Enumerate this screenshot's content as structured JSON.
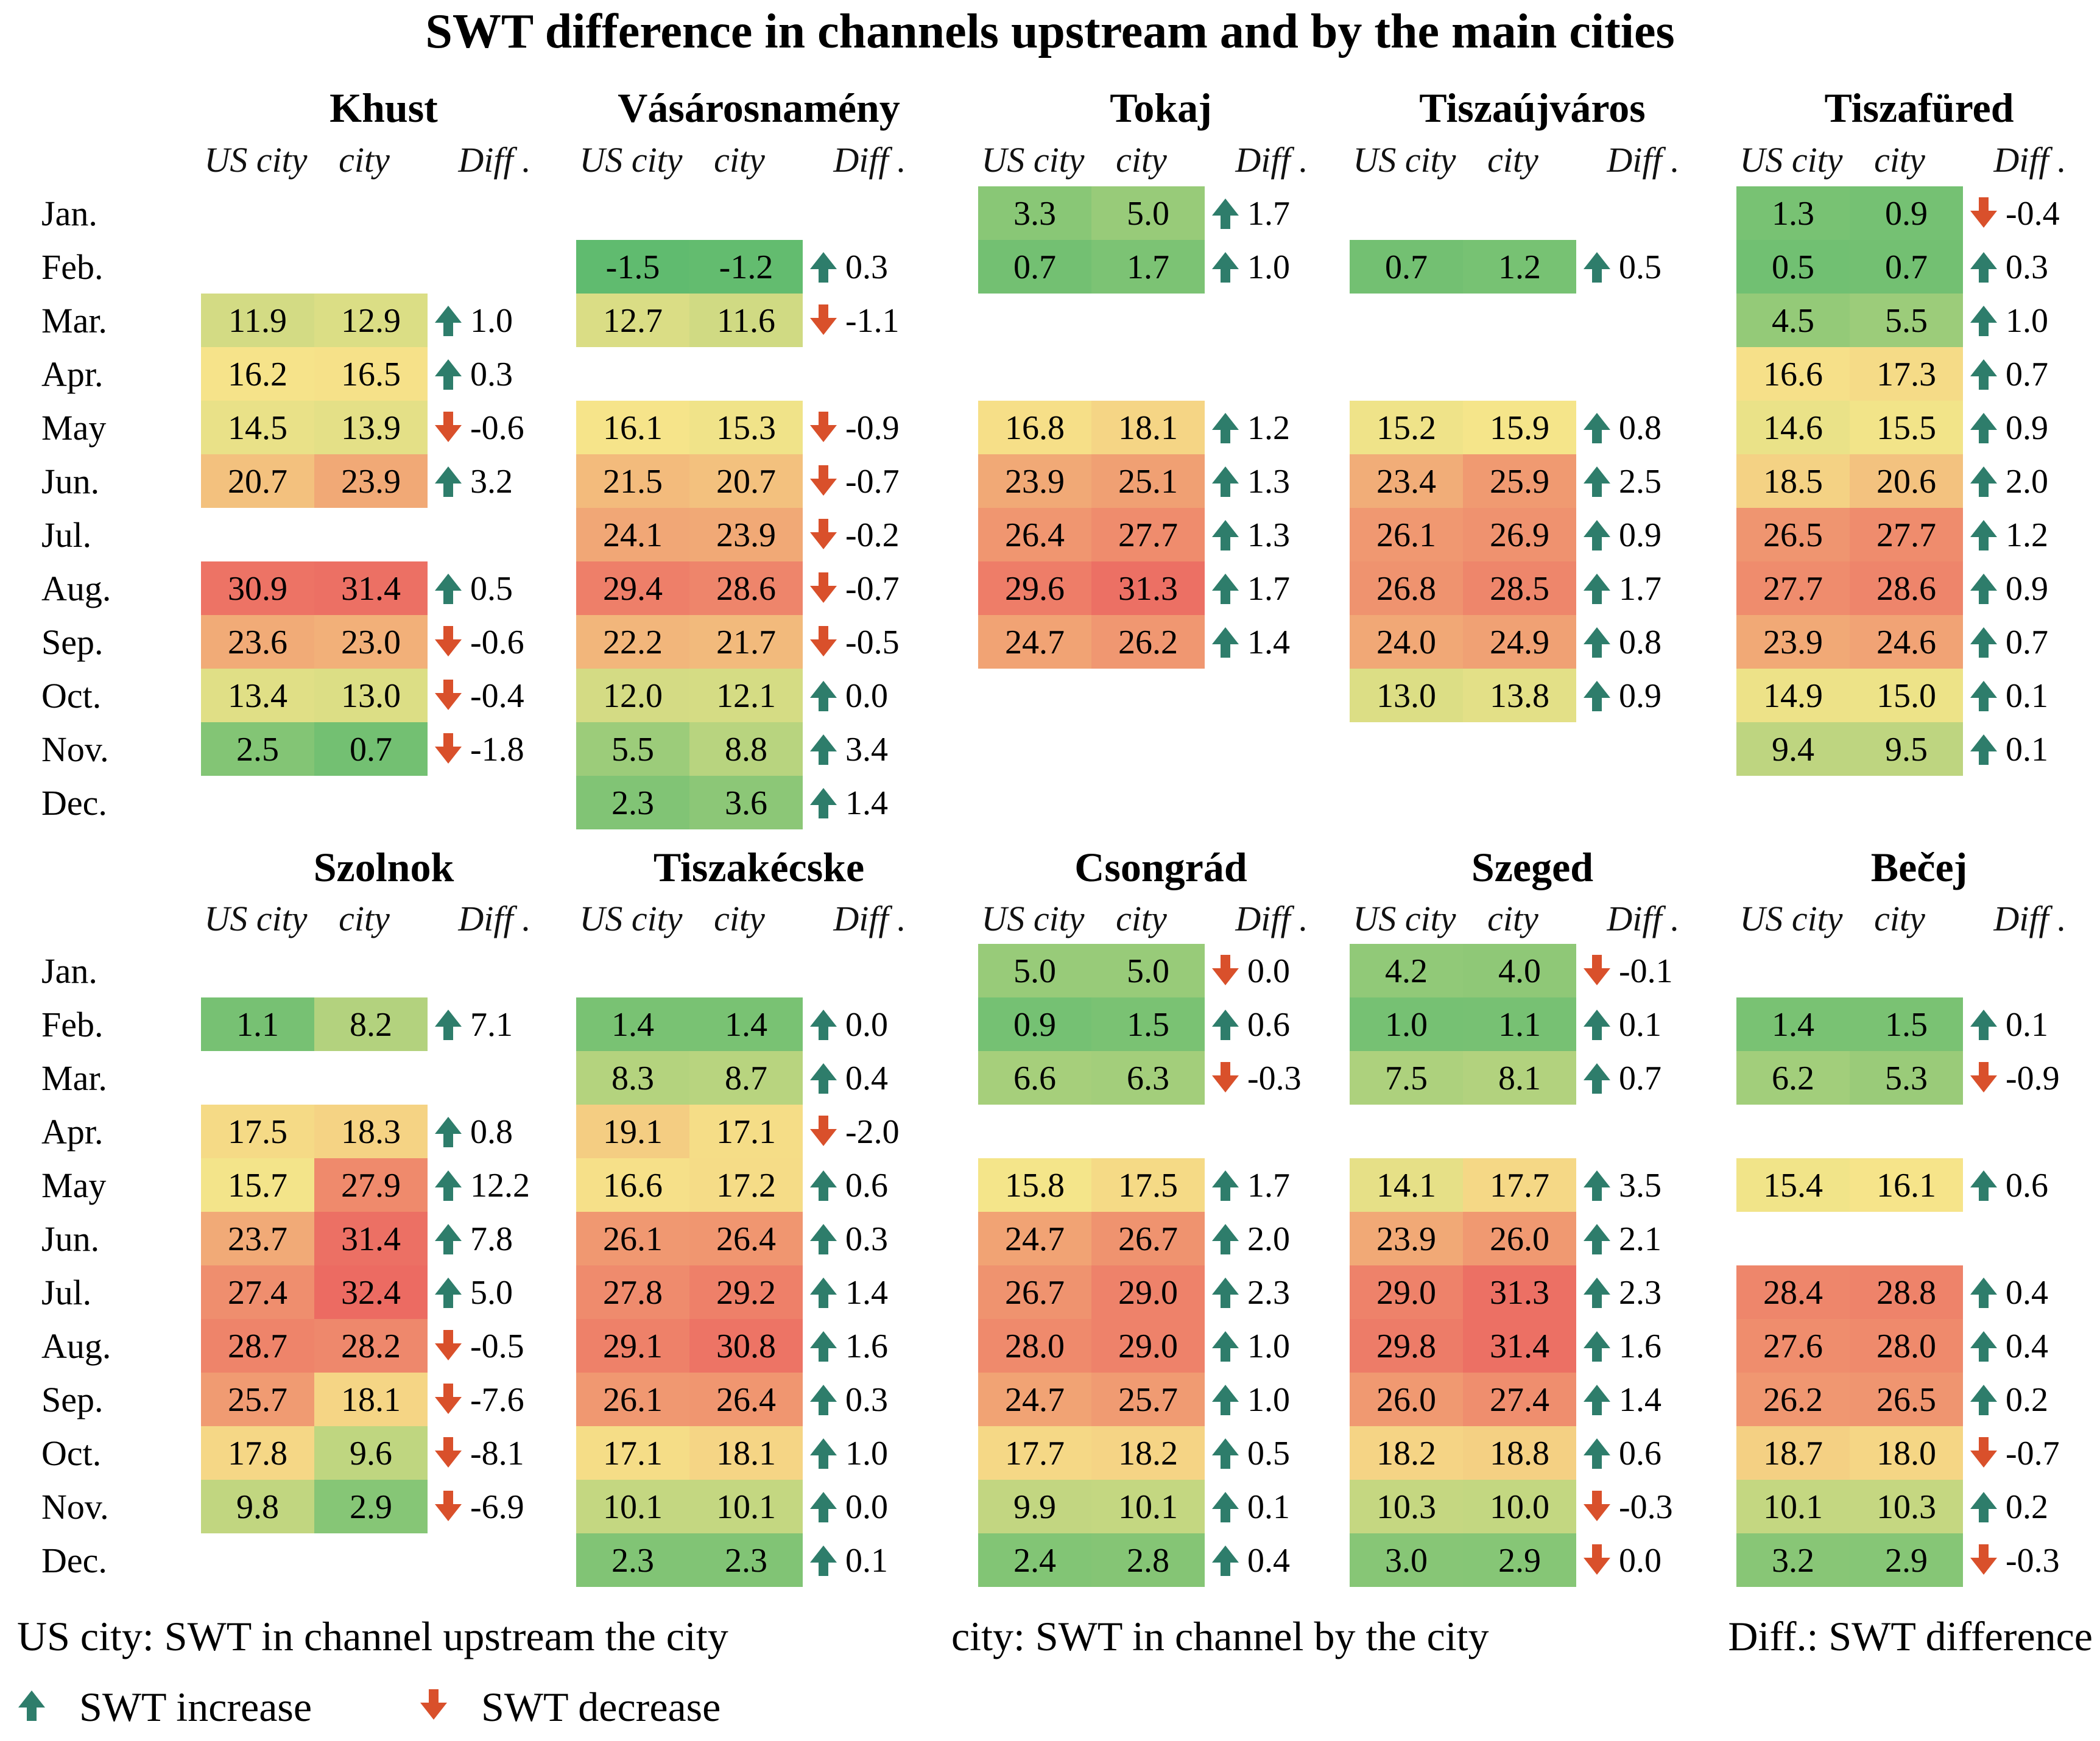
{
  "title": "SWT difference in channels upstream and by the main cities",
  "months": [
    "Jan.",
    "Feb.",
    "Mar.",
    "Apr.",
    "May",
    "Jun.",
    "Jul.",
    "Aug.",
    "Sep.",
    "Oct.",
    "Nov.",
    "Dec."
  ],
  "column_headers": {
    "us": "US city",
    "city": "city",
    "diff": "Diff ."
  },
  "footer": {
    "us_def": "US city: SWT in channel upstream the city",
    "city_def": "city: SWT in channel by the city",
    "diff_def": "Diff.: SWT difference",
    "increase": "SWT increase",
    "decrease": "SWT decrease"
  },
  "colors": {
    "increase_arrow": "#2e7d6b",
    "decrease_arrow": "#d9502b",
    "scale_low": "#5cba6e",
    "scale_mid": "#f6e58a",
    "scale_high": "#ec6b62"
  },
  "chart_data": {
    "type": "table",
    "value_scale": {
      "min": -2,
      "mid": 16,
      "max": 32
    },
    "panels": [
      {
        "city": "Khust",
        "rows": [
          null,
          null,
          {
            "us": "11.9",
            "city": "12.9",
            "diff": "1.0",
            "dir": "up"
          },
          {
            "us": "16.2",
            "city": "16.5",
            "diff": "0.3",
            "dir": "up"
          },
          {
            "us": "14.5",
            "city": "13.9",
            "diff": "-0.6",
            "dir": "down"
          },
          {
            "us": "20.7",
            "city": "23.9",
            "diff": "3.2",
            "dir": "up"
          },
          null,
          {
            "us": "30.9",
            "city": "31.4",
            "diff": "0.5",
            "dir": "up"
          },
          {
            "us": "23.6",
            "city": "23.0",
            "diff": "-0.6",
            "dir": "down"
          },
          {
            "us": "13.4",
            "city": "13.0",
            "diff": "-0.4",
            "dir": "down"
          },
          {
            "us": "2.5",
            "city": "0.7",
            "diff": "-1.8",
            "dir": "down"
          },
          null
        ]
      },
      {
        "city": "Vásárosnamény",
        "rows": [
          null,
          {
            "us": "-1.5",
            "city": "-1.2",
            "diff": "0.3",
            "dir": "up"
          },
          {
            "us": "12.7",
            "city": "11.6",
            "diff": "-1.1",
            "dir": "down"
          },
          null,
          {
            "us": "16.1",
            "city": "15.3",
            "diff": "-0.9",
            "dir": "down"
          },
          {
            "us": "21.5",
            "city": "20.7",
            "diff": "-0.7",
            "dir": "down"
          },
          {
            "us": "24.1",
            "city": "23.9",
            "diff": "-0.2",
            "dir": "down"
          },
          {
            "us": "29.4",
            "city": "28.6",
            "diff": "-0.7",
            "dir": "down"
          },
          {
            "us": "22.2",
            "city": "21.7",
            "diff": "-0.5",
            "dir": "down"
          },
          {
            "us": "12.0",
            "city": "12.1",
            "diff": "0.0",
            "dir": "up"
          },
          {
            "us": "5.5",
            "city": "8.8",
            "diff": "3.4",
            "dir": "up"
          },
          {
            "us": "2.3",
            "city": "3.6",
            "diff": "1.4",
            "dir": "up"
          }
        ]
      },
      {
        "city": "Tokaj",
        "rows": [
          {
            "us": "3.3",
            "city": "5.0",
            "diff": "1.7",
            "dir": "up"
          },
          {
            "us": "0.7",
            "city": "1.7",
            "diff": "1.0",
            "dir": "up"
          },
          null,
          null,
          {
            "us": "16.8",
            "city": "18.1",
            "diff": "1.2",
            "dir": "up"
          },
          {
            "us": "23.9",
            "city": "25.1",
            "diff": "1.3",
            "dir": "up"
          },
          {
            "us": "26.4",
            "city": "27.7",
            "diff": "1.3",
            "dir": "up"
          },
          {
            "us": "29.6",
            "city": "31.3",
            "diff": "1.7",
            "dir": "up"
          },
          {
            "us": "24.7",
            "city": "26.2",
            "diff": "1.4",
            "dir": "up"
          },
          null,
          null,
          null
        ]
      },
      {
        "city": "Tiszaújváros",
        "rows": [
          null,
          {
            "us": "0.7",
            "city": "1.2",
            "diff": "0.5",
            "dir": "up"
          },
          null,
          null,
          {
            "us": "15.2",
            "city": "15.9",
            "diff": "0.8",
            "dir": "up"
          },
          {
            "us": "23.4",
            "city": "25.9",
            "diff": "2.5",
            "dir": "up"
          },
          {
            "us": "26.1",
            "city": "26.9",
            "diff": "0.9",
            "dir": "up"
          },
          {
            "us": "26.8",
            "city": "28.5",
            "diff": "1.7",
            "dir": "up"
          },
          {
            "us": "24.0",
            "city": "24.9",
            "diff": "0.8",
            "dir": "up"
          },
          {
            "us": "13.0",
            "city": "13.8",
            "diff": "0.9",
            "dir": "up"
          },
          null,
          null
        ]
      },
      {
        "city": "Tiszafüred",
        "rows": [
          {
            "us": "1.3",
            "city": "0.9",
            "diff": "-0.4",
            "dir": "down"
          },
          {
            "us": "0.5",
            "city": "0.7",
            "diff": "0.3",
            "dir": "up"
          },
          {
            "us": "4.5",
            "city": "5.5",
            "diff": "1.0",
            "dir": "up"
          },
          {
            "us": "16.6",
            "city": "17.3",
            "diff": "0.7",
            "dir": "up"
          },
          {
            "us": "14.6",
            "city": "15.5",
            "diff": "0.9",
            "dir": "up"
          },
          {
            "us": "18.5",
            "city": "20.6",
            "diff": "2.0",
            "dir": "up"
          },
          {
            "us": "26.5",
            "city": "27.7",
            "diff": "1.2",
            "dir": "up"
          },
          {
            "us": "27.7",
            "city": "28.6",
            "diff": "0.9",
            "dir": "up"
          },
          {
            "us": "23.9",
            "city": "24.6",
            "diff": "0.7",
            "dir": "up"
          },
          {
            "us": "14.9",
            "city": "15.0",
            "diff": "0.1",
            "dir": "up"
          },
          {
            "us": "9.4",
            "city": "9.5",
            "diff": "0.1",
            "dir": "up"
          },
          null
        ]
      },
      {
        "city": "Szolnok",
        "rows": [
          null,
          {
            "us": "1.1",
            "city": "8.2",
            "diff": "7.1",
            "dir": "up"
          },
          null,
          {
            "us": "17.5",
            "city": "18.3",
            "diff": "0.8",
            "dir": "up"
          },
          {
            "us": "15.7",
            "city": "27.9",
            "diff": "12.2",
            "dir": "up"
          },
          {
            "us": "23.7",
            "city": "31.4",
            "diff": "7.8",
            "dir": "up"
          },
          {
            "us": "27.4",
            "city": "32.4",
            "diff": "5.0",
            "dir": "up"
          },
          {
            "us": "28.7",
            "city": "28.2",
            "diff": "-0.5",
            "dir": "down"
          },
          {
            "us": "25.7",
            "city": "18.1",
            "diff": "-7.6",
            "dir": "down"
          },
          {
            "us": "17.8",
            "city": "9.6",
            "diff": "-8.1",
            "dir": "down"
          },
          {
            "us": "9.8",
            "city": "2.9",
            "diff": "-6.9",
            "dir": "down"
          },
          null
        ]
      },
      {
        "city": "Tiszakécske",
        "rows": [
          null,
          {
            "us": "1.4",
            "city": "1.4",
            "diff": "0.0",
            "dir": "up"
          },
          {
            "us": "8.3",
            "city": "8.7",
            "diff": "0.4",
            "dir": "up"
          },
          {
            "us": "19.1",
            "city": "17.1",
            "diff": "-2.0",
            "dir": "down"
          },
          {
            "us": "16.6",
            "city": "17.2",
            "diff": "0.6",
            "dir": "up"
          },
          {
            "us": "26.1",
            "city": "26.4",
            "diff": "0.3",
            "dir": "up"
          },
          {
            "us": "27.8",
            "city": "29.2",
            "diff": "1.4",
            "dir": "up"
          },
          {
            "us": "29.1",
            "city": "30.8",
            "diff": "1.6",
            "dir": "up"
          },
          {
            "us": "26.1",
            "city": "26.4",
            "diff": "0.3",
            "dir": "up"
          },
          {
            "us": "17.1",
            "city": "18.1",
            "diff": "1.0",
            "dir": "up"
          },
          {
            "us": "10.1",
            "city": "10.1",
            "diff": "0.0",
            "dir": "up"
          },
          {
            "us": "2.3",
            "city": "2.3",
            "diff": "0.1",
            "dir": "up"
          }
        ]
      },
      {
        "city": "Csongrád",
        "rows": [
          {
            "us": "5.0",
            "city": "5.0",
            "diff": "0.0",
            "dir": "down"
          },
          {
            "us": "0.9",
            "city": "1.5",
            "diff": "0.6",
            "dir": "up"
          },
          {
            "us": "6.6",
            "city": "6.3",
            "diff": "-0.3",
            "dir": "down"
          },
          null,
          {
            "us": "15.8",
            "city": "17.5",
            "diff": "1.7",
            "dir": "up"
          },
          {
            "us": "24.7",
            "city": "26.7",
            "diff": "2.0",
            "dir": "up"
          },
          {
            "us": "26.7",
            "city": "29.0",
            "diff": "2.3",
            "dir": "up"
          },
          {
            "us": "28.0",
            "city": "29.0",
            "diff": "1.0",
            "dir": "up"
          },
          {
            "us": "24.7",
            "city": "25.7",
            "diff": "1.0",
            "dir": "up"
          },
          {
            "us": "17.7",
            "city": "18.2",
            "diff": "0.5",
            "dir": "up"
          },
          {
            "us": "9.9",
            "city": "10.1",
            "diff": "0.1",
            "dir": "up"
          },
          {
            "us": "2.4",
            "city": "2.8",
            "diff": "0.4",
            "dir": "up"
          }
        ]
      },
      {
        "city": "Szeged",
        "rows": [
          {
            "us": "4.2",
            "city": "4.0",
            "diff": "-0.1",
            "dir": "down"
          },
          {
            "us": "1.0",
            "city": "1.1",
            "diff": "0.1",
            "dir": "up"
          },
          {
            "us": "7.5",
            "city": "8.1",
            "diff": "0.7",
            "dir": "up"
          },
          null,
          {
            "us": "14.1",
            "city": "17.7",
            "diff": "3.5",
            "dir": "up"
          },
          {
            "us": "23.9",
            "city": "26.0",
            "diff": "2.1",
            "dir": "up"
          },
          {
            "us": "29.0",
            "city": "31.3",
            "diff": "2.3",
            "dir": "up"
          },
          {
            "us": "29.8",
            "city": "31.4",
            "diff": "1.6",
            "dir": "up"
          },
          {
            "us": "26.0",
            "city": "27.4",
            "diff": "1.4",
            "dir": "up"
          },
          {
            "us": "18.2",
            "city": "18.8",
            "diff": "0.6",
            "dir": "up"
          },
          {
            "us": "10.3",
            "city": "10.0",
            "diff": "-0.3",
            "dir": "down"
          },
          {
            "us": "3.0",
            "city": "2.9",
            "diff": "0.0",
            "dir": "down"
          }
        ]
      },
      {
        "city": "Bečej",
        "rows": [
          null,
          {
            "us": "1.4",
            "city": "1.5",
            "diff": "0.1",
            "dir": "up"
          },
          {
            "us": "6.2",
            "city": "5.3",
            "diff": "-0.9",
            "dir": "down"
          },
          null,
          {
            "us": "15.4",
            "city": "16.1",
            "diff": "0.6",
            "dir": "up"
          },
          null,
          {
            "us": "28.4",
            "city": "28.8",
            "diff": "0.4",
            "dir": "up"
          },
          {
            "us": "27.6",
            "city": "28.0",
            "diff": "0.4",
            "dir": "up"
          },
          {
            "us": "26.2",
            "city": "26.5",
            "diff": "0.2",
            "dir": "up"
          },
          {
            "us": "18.7",
            "city": "18.0",
            "diff": "-0.7",
            "dir": "down"
          },
          {
            "us": "10.1",
            "city": "10.3",
            "diff": "0.2",
            "dir": "up"
          },
          {
            "us": "3.2",
            "city": "2.9",
            "diff": "-0.3",
            "dir": "down"
          }
        ]
      }
    ]
  }
}
